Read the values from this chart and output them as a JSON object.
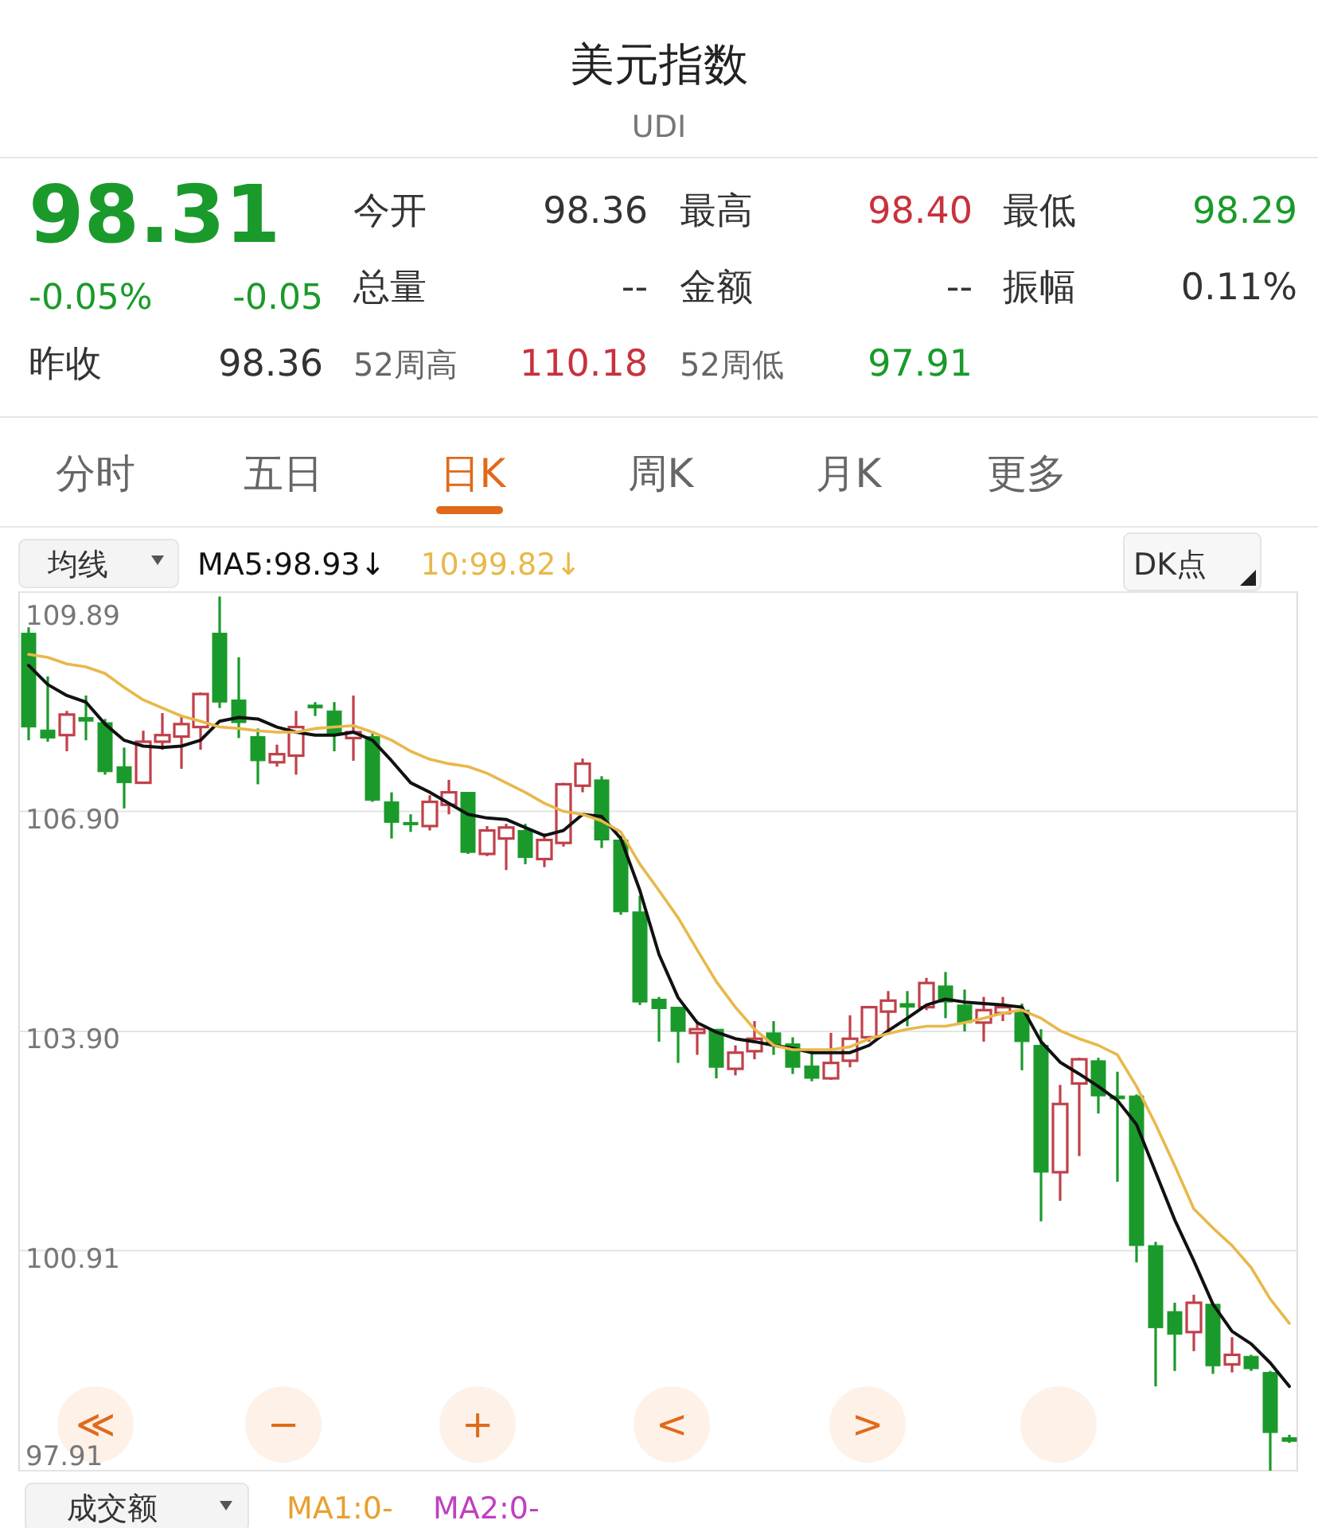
{
  "chart_data": {
    "type": "candlestick",
    "title": "美元指数",
    "subtitle": "UDI",
    "categories": [
      null,
      null,
      null,
      null,
      null,
      null,
      null,
      null,
      null,
      null,
      null,
      null,
      null,
      null,
      null,
      null,
      null,
      null,
      null,
      null,
      null,
      null,
      null,
      null,
      null,
      null,
      null,
      null,
      null,
      null,
      null,
      null,
      null,
      null,
      null,
      null,
      null,
      null,
      null,
      null,
      null,
      null,
      null,
      null,
      null,
      null,
      null,
      null,
      null,
      null,
      null,
      null,
      null,
      null,
      null,
      null,
      null,
      null,
      null,
      null,
      null,
      null,
      null,
      null,
      null,
      null,
      null
    ],
    "ohlc": [
      [
        109.33,
        109.41,
        107.87,
        108.05
      ],
      [
        108.01,
        108.74,
        107.85,
        107.9
      ],
      [
        107.94,
        108.27,
        107.72,
        108.22
      ],
      [
        108.18,
        108.48,
        107.87,
        108.13
      ],
      [
        108.11,
        108.16,
        107.4,
        107.44
      ],
      [
        107.51,
        107.77,
        106.94,
        107.29
      ],
      [
        107.29,
        108.0,
        107.29,
        107.85
      ],
      [
        107.85,
        108.24,
        107.74,
        107.94
      ],
      [
        107.92,
        108.2,
        107.48,
        108.09
      ],
      [
        108.05,
        108.52,
        107.74,
        108.5
      ],
      [
        109.33,
        109.83,
        108.31,
        108.39
      ],
      [
        108.42,
        109.0,
        107.9,
        108.11
      ],
      [
        107.92,
        108.03,
        107.27,
        107.59
      ],
      [
        107.57,
        107.81,
        107.51,
        107.68
      ],
      [
        107.66,
        108.27,
        107.4,
        108.05
      ],
      [
        108.35,
        108.39,
        108.2,
        108.31
      ],
      [
        108.27,
        108.39,
        107.72,
        107.94
      ],
      [
        107.9,
        108.48,
        107.59,
        107.98
      ],
      [
        107.92,
        107.98,
        107.03,
        107.05
      ],
      [
        107.03,
        107.16,
        106.53,
        106.75
      ],
      [
        106.75,
        106.86,
        106.62,
        106.73
      ],
      [
        106.7,
        107.12,
        106.64,
        107.03
      ],
      [
        106.99,
        107.33,
        106.86,
        107.16
      ],
      [
        107.16,
        107.16,
        106.32,
        106.34
      ],
      [
        106.32,
        106.7,
        106.29,
        106.64
      ],
      [
        106.53,
        106.73,
        106.1,
        106.68
      ],
      [
        106.64,
        106.73,
        106.18,
        106.27
      ],
      [
        106.25,
        106.6,
        106.14,
        106.51
      ],
      [
        106.47,
        107.29,
        106.42,
        107.27
      ],
      [
        107.25,
        107.62,
        107.16,
        107.55
      ],
      [
        107.33,
        107.38,
        106.4,
        106.51
      ],
      [
        106.51,
        106.57,
        105.49,
        105.53
      ],
      [
        105.53,
        105.75,
        104.26,
        104.3
      ],
      [
        104.34,
        104.37,
        103.76,
        104.21
      ],
      [
        104.23,
        104.23,
        103.47,
        103.9
      ],
      [
        103.88,
        104.04,
        103.58,
        103.93
      ],
      [
        103.93,
        103.93,
        103.26,
        103.41
      ],
      [
        103.39,
        103.71,
        103.3,
        103.61
      ],
      [
        103.63,
        104.04,
        103.52,
        103.8
      ],
      [
        103.88,
        104.04,
        103.58,
        103.71
      ],
      [
        103.73,
        103.82,
        103.32,
        103.41
      ],
      [
        103.43,
        103.65,
        103.22,
        103.26
      ],
      [
        103.26,
        103.88,
        103.24,
        103.47
      ],
      [
        103.5,
        104.12,
        103.41,
        103.8
      ],
      [
        103.82,
        104.23,
        103.76,
        104.23
      ],
      [
        104.17,
        104.45,
        103.86,
        104.32
      ],
      [
        104.28,
        104.45,
        103.97,
        104.23
      ],
      [
        104.23,
        104.63,
        104.19,
        104.56
      ],
      [
        104.52,
        104.71,
        104.08,
        104.3
      ],
      [
        104.26,
        104.47,
        103.9,
        104.02
      ],
      [
        104.02,
        104.37,
        103.76,
        104.19
      ],
      [
        104.15,
        104.37,
        104.04,
        104.23
      ],
      [
        104.19,
        104.28,
        103.37,
        103.76
      ],
      [
        103.71,
        103.93,
        101.31,
        101.98
      ],
      [
        101.98,
        103.17,
        101.59,
        102.91
      ],
      [
        103.19,
        103.54,
        102.2,
        103.52
      ],
      [
        103.5,
        103.54,
        102.78,
        103.02
      ],
      [
        103.02,
        103.35,
        101.85,
        102.98
      ],
      [
        103.02,
        103.04,
        100.75,
        100.98
      ],
      [
        100.98,
        101.03,
        99.06,
        99.86
      ],
      [
        100.08,
        100.2,
        99.27,
        99.77
      ],
      [
        99.8,
        100.31,
        99.54,
        100.2
      ],
      [
        100.18,
        100.2,
        99.23,
        99.34
      ],
      [
        99.36,
        99.73,
        99.25,
        99.49
      ],
      [
        99.47,
        99.49,
        99.27,
        99.3
      ],
      [
        99.25,
        99.27,
        97.91,
        98.43
      ],
      [
        98.36,
        98.4,
        98.29,
        98.31
      ]
    ],
    "colors": [
      "#1a9a2a",
      "#1a9a2a",
      "#c0404a",
      "#1a9a2a",
      "#1a9a2a",
      "#1a9a2a",
      "#c0404a",
      "#c0404a",
      "#c0404a",
      "#c0404a",
      "#1a9a2a",
      "#1a9a2a",
      "#1a9a2a",
      "#c0404a",
      "#c0404a",
      "#1a9a2a",
      "#1a9a2a",
      "#c0404a",
      "#1a9a2a",
      "#1a9a2a",
      "#1a9a2a",
      "#c0404a",
      "#c0404a",
      "#1a9a2a",
      "#c0404a",
      "#c0404a",
      "#1a9a2a",
      "#c0404a",
      "#c0404a",
      "#c0404a",
      "#1a9a2a",
      "#1a9a2a",
      "#1a9a2a",
      "#1a9a2a",
      "#1a9a2a",
      "#c0404a",
      "#1a9a2a",
      "#c0404a",
      "#c0404a",
      "#1a9a2a",
      "#1a9a2a",
      "#1a9a2a",
      "#c0404a",
      "#c0404a",
      "#c0404a",
      "#c0404a",
      "#1a9a2a",
      "#c0404a",
      "#1a9a2a",
      "#1a9a2a",
      "#c0404a",
      "#c0404a",
      "#1a9a2a",
      "#1a9a2a",
      "#c0404a",
      "#c0404a",
      "#1a9a2a",
      "#1a9a2a",
      "#1a9a2a",
      "#1a9a2a",
      "#1a9a2a",
      "#c0404a",
      "#1a9a2a",
      "#c0404a",
      "#1a9a2a",
      "#1a9a2a",
      "#1a9a2a"
    ],
    "series": [
      {
        "name": "MA5:98.93↓",
        "type": "line",
        "color": "#111111",
        "values": [
          108.89,
          108.63,
          108.48,
          108.39,
          108.09,
          107.87,
          107.79,
          107.77,
          107.79,
          107.87,
          108.13,
          108.18,
          108.16,
          108.05,
          107.98,
          107.94,
          107.94,
          107.98,
          107.87,
          107.59,
          107.29,
          107.16,
          107.01,
          106.86,
          106.81,
          106.79,
          106.68,
          106.57,
          106.64,
          106.86,
          106.83,
          106.53,
          105.82,
          104.95,
          104.36,
          104.02,
          103.89,
          103.8,
          103.76,
          103.71,
          103.67,
          103.61,
          103.61,
          103.61,
          103.71,
          103.91,
          104.08,
          104.26,
          104.34,
          104.3,
          104.28,
          104.26,
          104.23,
          103.76,
          103.48,
          103.32,
          103.15,
          102.96,
          102.63,
          101.98,
          101.33,
          100.77,
          100.18,
          99.81,
          99.64,
          99.38,
          99.06
        ]
      },
      {
        "name": "10:99.82↓",
        "type": "line",
        "color": "#e8b84a",
        "values": [
          109.04,
          109.0,
          108.91,
          108.87,
          108.78,
          108.59,
          108.42,
          108.31,
          108.2,
          108.13,
          108.05,
          108.03,
          108.0,
          107.98,
          107.98,
          108.03,
          108.05,
          108.07,
          107.98,
          107.87,
          107.72,
          107.61,
          107.55,
          107.51,
          107.42,
          107.29,
          107.16,
          107.01,
          106.9,
          106.86,
          106.77,
          106.62,
          106.18,
          105.82,
          105.45,
          105.01,
          104.58,
          104.23,
          103.93,
          103.71,
          103.65,
          103.65,
          103.65,
          103.69,
          103.8,
          103.87,
          103.93,
          103.97,
          103.97,
          104.02,
          104.08,
          104.15,
          104.19,
          104.08,
          103.91,
          103.8,
          103.71,
          103.58,
          103.15,
          102.63,
          102.07,
          101.48,
          101.22,
          100.98,
          100.68,
          100.25,
          99.92
        ]
      }
    ],
    "ylim": [
      97.91,
      109.89
    ],
    "yticks": [
      97.91,
      100.91,
      {
        "value": 103.9,
        "label": "103.90"
      },
      {
        "value": 106.9,
        "label": "106.90"
      },
      109.89
    ],
    "grid": "y",
    "legend": "top left",
    "annotations": [
      "98.31",
      "-0.05%",
      "-0.05",
      "昨收",
      "98.36",
      "今开",
      "98.36",
      "总量",
      "--",
      "52周高",
      "110.18",
      "最高",
      "98.40",
      "金额",
      "--",
      "52周低",
      "97.91",
      "最低",
      "98.29",
      "振幅",
      "0.11%",
      "分时",
      "五日",
      "日K",
      "周K",
      "月K",
      "更多",
      "均线",
      "DK点",
      "成交额",
      "MA1:0-",
      "MA2:0-",
      "≪",
      "−",
      "+",
      "<",
      ">"
    ]
  }
}
